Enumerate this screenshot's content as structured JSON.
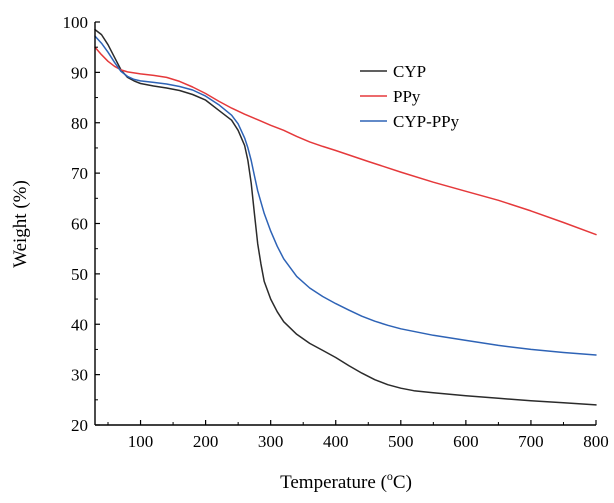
{
  "chart_data": {
    "type": "line",
    "title": "",
    "xlabel": "Temperature (",
    "xlabel_superscript": "o",
    "xlabel_suffix": "C)",
    "ylabel": "Weight (%)",
    "xlim": [
      30,
      800
    ],
    "ylim": [
      20,
      100
    ],
    "x_ticks": [
      100,
      200,
      300,
      400,
      500,
      600,
      700,
      800
    ],
    "y_ticks": [
      20,
      30,
      40,
      50,
      60,
      70,
      80,
      90,
      100
    ],
    "grid": false,
    "legend_position": "top-right",
    "series": [
      {
        "name": "CYP",
        "color": "#2b2b2b",
        "points": [
          [
            30,
            98.5
          ],
          [
            40,
            97.5
          ],
          [
            50,
            95.5
          ],
          [
            60,
            93
          ],
          [
            70,
            90.5
          ],
          [
            80,
            89
          ],
          [
            90,
            88.3
          ],
          [
            100,
            87.8
          ],
          [
            120,
            87.3
          ],
          [
            140,
            86.9
          ],
          [
            160,
            86.4
          ],
          [
            180,
            85.6
          ],
          [
            200,
            84.5
          ],
          [
            220,
            82.5
          ],
          [
            240,
            80.5
          ],
          [
            250,
            78.5
          ],
          [
            260,
            75.5
          ],
          [
            265,
            72.5
          ],
          [
            270,
            68
          ],
          [
            275,
            62
          ],
          [
            280,
            56
          ],
          [
            285,
            52
          ],
          [
            290,
            48.5
          ],
          [
            300,
            45
          ],
          [
            310,
            42.5
          ],
          [
            320,
            40.5
          ],
          [
            340,
            38
          ],
          [
            360,
            36.2
          ],
          [
            380,
            34.8
          ],
          [
            400,
            33.4
          ],
          [
            420,
            31.8
          ],
          [
            440,
            30.3
          ],
          [
            460,
            29
          ],
          [
            480,
            28
          ],
          [
            500,
            27.3
          ],
          [
            520,
            26.8
          ],
          [
            550,
            26.4
          ],
          [
            600,
            25.8
          ],
          [
            650,
            25.3
          ],
          [
            700,
            24.8
          ],
          [
            750,
            24.4
          ],
          [
            800,
            24
          ]
        ]
      },
      {
        "name": "PPy",
        "color": "#e5393b",
        "points": [
          [
            30,
            95
          ],
          [
            40,
            93.5
          ],
          [
            50,
            92.2
          ],
          [
            60,
            91.2
          ],
          [
            70,
            90.5
          ],
          [
            80,
            90.1
          ],
          [
            100,
            89.7
          ],
          [
            120,
            89.4
          ],
          [
            140,
            89
          ],
          [
            160,
            88.2
          ],
          [
            180,
            87.1
          ],
          [
            200,
            85.8
          ],
          [
            220,
            84.3
          ],
          [
            240,
            82.9
          ],
          [
            260,
            81.7
          ],
          [
            280,
            80.6
          ],
          [
            300,
            79.5
          ],
          [
            320,
            78.5
          ],
          [
            340,
            77.3
          ],
          [
            360,
            76.2
          ],
          [
            380,
            75.3
          ],
          [
            400,
            74.5
          ],
          [
            450,
            72.3
          ],
          [
            500,
            70.2
          ],
          [
            550,
            68.2
          ],
          [
            600,
            66.4
          ],
          [
            650,
            64.6
          ],
          [
            700,
            62.5
          ],
          [
            750,
            60.2
          ],
          [
            800,
            57.8
          ]
        ]
      },
      {
        "name": "CYP-PPy",
        "color": "#2e63b6",
        "points": [
          [
            30,
            97.2
          ],
          [
            40,
            95.8
          ],
          [
            50,
            94
          ],
          [
            60,
            92
          ],
          [
            70,
            90.2
          ],
          [
            80,
            89.2
          ],
          [
            90,
            88.6
          ],
          [
            100,
            88.3
          ],
          [
            120,
            88
          ],
          [
            140,
            87.7
          ],
          [
            160,
            87.2
          ],
          [
            180,
            86.5
          ],
          [
            200,
            85.3
          ],
          [
            220,
            83.6
          ],
          [
            240,
            81.5
          ],
          [
            250,
            79.8
          ],
          [
            260,
            77
          ],
          [
            265,
            75
          ],
          [
            270,
            72.5
          ],
          [
            275,
            69.5
          ],
          [
            280,
            66.5
          ],
          [
            290,
            62
          ],
          [
            300,
            58.5
          ],
          [
            310,
            55.5
          ],
          [
            320,
            53
          ],
          [
            340,
            49.5
          ],
          [
            360,
            47.2
          ],
          [
            380,
            45.5
          ],
          [
            400,
            44.1
          ],
          [
            420,
            42.8
          ],
          [
            440,
            41.6
          ],
          [
            460,
            40.6
          ],
          [
            480,
            39.8
          ],
          [
            500,
            39.1
          ],
          [
            550,
            37.8
          ],
          [
            600,
            36.8
          ],
          [
            650,
            35.8
          ],
          [
            700,
            35
          ],
          [
            750,
            34.4
          ],
          [
            800,
            33.9
          ]
        ]
      }
    ]
  }
}
